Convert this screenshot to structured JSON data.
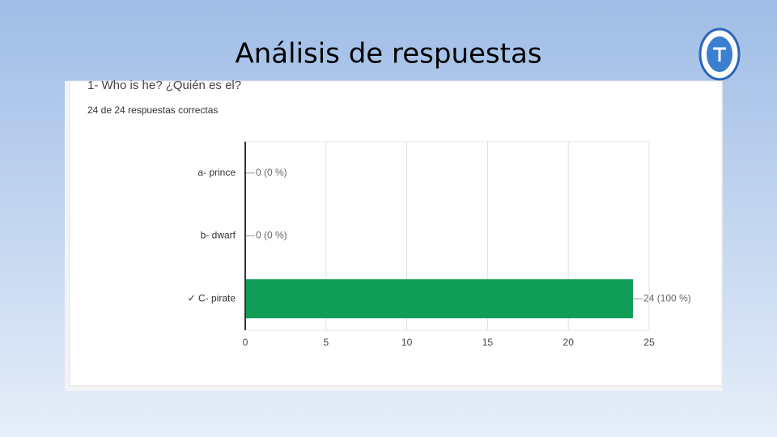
{
  "slide": {
    "title": "Análisis de respuestas"
  },
  "chart_data": {
    "type": "bar",
    "orientation": "horizontal",
    "title": "1- Who is he? ¿Quién es el?",
    "subtitle": "24 de 24 respuestas correctas",
    "categories": [
      "a- prince",
      "b- dwarf",
      "✓ C- pirate"
    ],
    "values": [
      0,
      0,
      24
    ],
    "value_labels": [
      "0 (0 %)",
      "0 (0 %)",
      "24 (100 %)"
    ],
    "color": "#0f9d58",
    "xlim": [
      0,
      25
    ],
    "xticks": [
      0,
      5,
      10,
      15,
      20,
      25
    ],
    "grid": true
  }
}
